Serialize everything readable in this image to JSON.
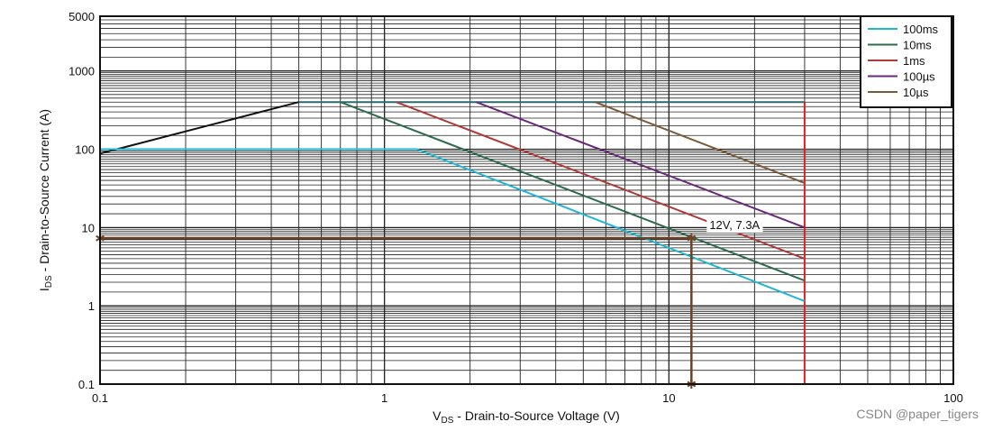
{
  "chart_data": {
    "type": "line",
    "title": "",
    "xlabel_main": "V",
    "xlabel_sub": "DS",
    "xlabel_rest": " - Drain-to-Source Voltage (V)",
    "ylabel_main": "I",
    "ylabel_sub": "DS",
    "ylabel_rest": " - Drain-to-Source Current (A)",
    "x_scale": "log",
    "y_scale": "log",
    "xlim": [
      0.1,
      100
    ],
    "ylim": [
      0.1,
      5000
    ],
    "x_ticks": [
      {
        "value": 0.1,
        "label": "0.1"
      },
      {
        "value": 1,
        "label": "1"
      },
      {
        "value": 10,
        "label": "10"
      },
      {
        "value": 100,
        "label": "100"
      }
    ],
    "y_ticks": [
      {
        "value": 0.1,
        "label": "0.1"
      },
      {
        "value": 1,
        "label": "1"
      },
      {
        "value": 10,
        "label": "10"
      },
      {
        "value": 100,
        "label": "100"
      },
      {
        "value": 1000,
        "label": "1000"
      },
      {
        "value": 5000,
        "label": "5000"
      }
    ],
    "grid": true,
    "legend_position": "top-right",
    "series": [
      {
        "name": "100ms",
        "color": "#1fb6d4",
        "points": [
          [
            0.1,
            100
          ],
          [
            1.3,
            100
          ],
          [
            30,
            1.15
          ]
        ]
      },
      {
        "name": "10ms",
        "color": "#2e6b4e",
        "points": [
          [
            0.7,
            400
          ],
          [
            30,
            2.1
          ]
        ]
      },
      {
        "name": "1ms",
        "color": "#b03a3a",
        "points": [
          [
            1.1,
            400
          ],
          [
            30,
            4
          ]
        ]
      },
      {
        "name": "100µs",
        "color": "#6a2a7a",
        "points": [
          [
            2.1,
            400
          ],
          [
            30,
            10
          ]
        ]
      },
      {
        "name": "10µs",
        "color": "#7a5a3a",
        "points": [
          [
            5.5,
            400
          ],
          [
            30,
            37
          ]
        ]
      }
    ],
    "limits": [
      {
        "id": "rdson-limit",
        "color": "#111111",
        "points": [
          [
            0.1,
            88
          ],
          [
            0.5,
            400
          ]
        ]
      },
      {
        "id": "current-limit",
        "color": "#2a6a6a",
        "points": [
          [
            0.5,
            400
          ],
          [
            30,
            400
          ]
        ]
      },
      {
        "id": "voltage-limit",
        "color": "#e02020",
        "points": [
          [
            30,
            0.1
          ],
          [
            30,
            400
          ]
        ]
      }
    ],
    "annotation": {
      "text": "12V, 7.3A",
      "point": [
        12,
        7.3
      ],
      "color": "#6b4226"
    }
  },
  "watermark": "CSDN @paper_tigers"
}
